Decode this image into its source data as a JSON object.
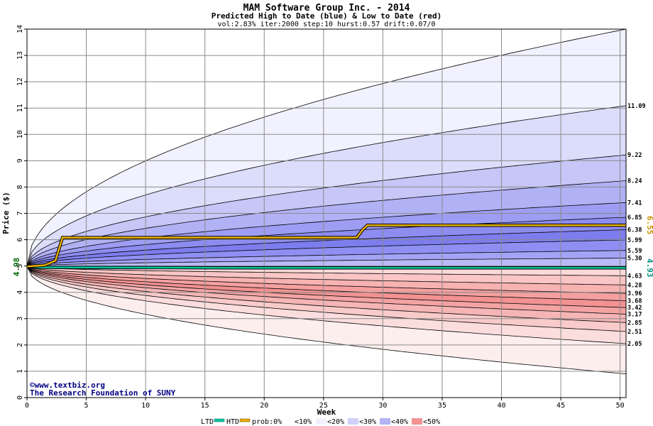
{
  "chart_data": {
    "type": "area",
    "title": "MAM Software Group Inc. - 2014",
    "subtitle": "Predicted High to Date (blue) &  Low to Date (red)",
    "params": "vol:2.83% iter:2000 step:10 hurst:0.57 drift:0.07/0",
    "xlabel": "Week",
    "ylabel": "Price ($)",
    "xlim": [
      0,
      50.5
    ],
    "ylim": [
      0,
      14
    ],
    "xticks": [
      0,
      5,
      10,
      15,
      20,
      25,
      30,
      35,
      40,
      45,
      50
    ],
    "yticks": [
      0,
      1,
      2,
      3,
      4,
      5,
      6,
      7,
      8,
      9,
      10,
      11,
      12,
      13,
      14
    ],
    "grid": true,
    "start_price": 4.98,
    "start_label": "4.98",
    "high_bands": [
      {
        "end": 14,
        "label": "",
        "prob": "0%"
      },
      {
        "end": 11.09,
        "label": "11.09"
      },
      {
        "end": 9.22,
        "label": "9.22"
      },
      {
        "end": 8.24,
        "label": "8.24"
      },
      {
        "end": 7.41,
        "label": "7.41"
      },
      {
        "end": 6.85,
        "label": "6.85"
      },
      {
        "end": 6.38,
        "label": "6.38"
      },
      {
        "end": 5.99,
        "label": "5.99"
      },
      {
        "end": 5.59,
        "label": "5.59"
      },
      {
        "end": 5.3,
        "label": "5.30"
      }
    ],
    "low_bands": [
      {
        "end": 4.63,
        "label": "4.63"
      },
      {
        "end": 4.28,
        "label": "4.28"
      },
      {
        "end": 3.96,
        "label": "3.96"
      },
      {
        "end": 3.68,
        "label": "3.68"
      },
      {
        "end": 3.42,
        "label": "3.42"
      },
      {
        "end": 3.17,
        "label": "3.17"
      },
      {
        "end": 2.85,
        "label": "2.85"
      },
      {
        "end": 2.51,
        "label": "2.51"
      },
      {
        "end": 2.05,
        "label": "2.05"
      },
      {
        "end": 0.9,
        "label": ""
      }
    ],
    "htd_series": {
      "name": "HTD",
      "color": "#e8b000",
      "points": [
        [
          0,
          4.98
        ],
        [
          1.5,
          5.03
        ],
        [
          2.4,
          5.2
        ],
        [
          3.0,
          6.08
        ],
        [
          27.8,
          6.08
        ],
        [
          28.3,
          6.38
        ],
        [
          28.7,
          6.55
        ],
        [
          50.5,
          6.55
        ]
      ],
      "end_label": "6.55"
    },
    "ltd_series": {
      "name": "LTD",
      "color": "#00c8a0",
      "points": [
        [
          0,
          4.98
        ],
        [
          1.0,
          4.95
        ],
        [
          17.0,
          4.93
        ],
        [
          50.5,
          4.93
        ]
      ],
      "end_label": "4.93"
    },
    "colors": {
      "blue_shades": [
        "#f1f1ff",
        "#dcdcfb",
        "#c6c6f7",
        "#b1b1f5",
        "#9d9df3",
        "#8c8cf1",
        "#7d7dee",
        "#8f8ff3",
        "#a4a4f6",
        "#babaf8"
      ],
      "red_shades": [
        "#fbd9d9",
        "#f9c5c5",
        "#f7b2b2",
        "#f5a0a0",
        "#f29292",
        "#f3a3a3",
        "#f5b5b5",
        "#f8caca",
        "#fbdddd",
        "#fdeeee"
      ],
      "htd_color": "#e8b000",
      "ltd_color": "#00c8a0"
    },
    "legend": {
      "ltd": "LTD",
      "htd": "HTD",
      "prob": "prob:0%",
      "p10": "<10%",
      "p20": "<20%",
      "p30": "<30%",
      "p40": "<40%",
      "p50": "<50%"
    }
  },
  "credit": {
    "line1": "©www.textbiz.org",
    "line2": "The Research Foundation of SUNY"
  }
}
